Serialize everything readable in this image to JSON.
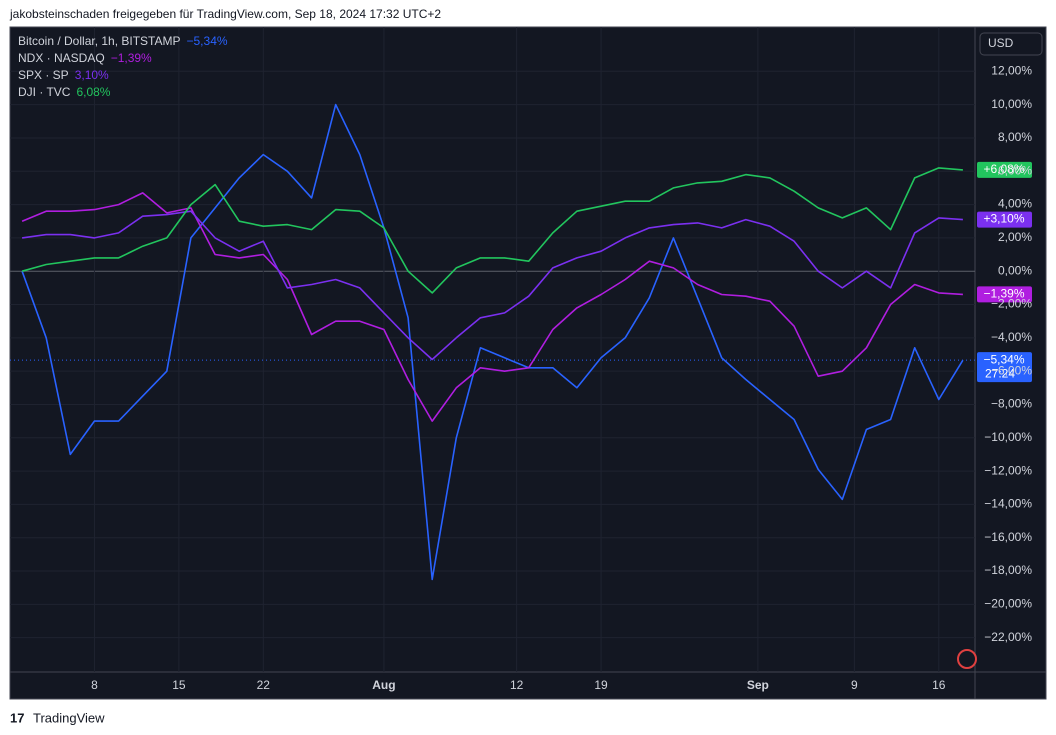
{
  "header": "jakobsteinschaden freigegeben für TradingView.com, Sep 18, 2024 17:32 UTC+2",
  "footer": "TradingView",
  "chart_data": {
    "type": "line",
    "currency": "USD",
    "countdown": "27:24",
    "x": [
      "2024-07-02",
      "2024-07-04",
      "2024-07-06",
      "2024-07-08",
      "2024-07-10",
      "2024-07-12",
      "2024-07-14",
      "2024-07-16",
      "2024-07-18",
      "2024-07-20",
      "2024-07-22",
      "2024-07-24",
      "2024-07-26",
      "2024-07-28",
      "2024-07-30",
      "2024-08-01",
      "2024-08-03",
      "2024-08-05",
      "2024-08-07",
      "2024-08-09",
      "2024-08-11",
      "2024-08-13",
      "2024-08-15",
      "2024-08-17",
      "2024-08-19",
      "2024-08-21",
      "2024-08-23",
      "2024-08-25",
      "2024-08-27",
      "2024-08-29",
      "2024-08-31",
      "2024-09-02",
      "2024-09-04",
      "2024-09-06",
      "2024-09-08",
      "2024-09-10",
      "2024-09-12",
      "2024-09-14",
      "2024-09-16",
      "2024-09-18"
    ],
    "xlim": [
      "2024-07-01",
      "2024-09-19"
    ],
    "xticks": [
      {
        "value": "2024-07-08",
        "label": "8"
      },
      {
        "value": "2024-07-15",
        "label": "15"
      },
      {
        "value": "2024-07-22",
        "label": "22"
      },
      {
        "value": "2024-08-01",
        "label": "Aug"
      },
      {
        "value": "2024-08-12",
        "label": "12"
      },
      {
        "value": "2024-08-19",
        "label": "19"
      },
      {
        "value": "2024-09-01",
        "label": "Sep"
      },
      {
        "value": "2024-09-09",
        "label": "9"
      },
      {
        "value": "2024-09-16",
        "label": "16"
      }
    ],
    "ylim": [
      -24.06,
      14.66
    ],
    "yticks": [
      {
        "value": 12,
        "label": "12,00%"
      },
      {
        "value": 10,
        "label": "10,00%"
      },
      {
        "value": 8,
        "label": "8,00%"
      },
      {
        "value": 6,
        "label": "6,00%"
      },
      {
        "value": 4,
        "label": "4,00%"
      },
      {
        "value": 2,
        "label": "2,00%"
      },
      {
        "value": 0,
        "label": "0,00%"
      },
      {
        "value": -2,
        "label": "−2,00%"
      },
      {
        "value": -4,
        "label": "−4,00%"
      },
      {
        "value": -6,
        "label": "−6,00%"
      },
      {
        "value": -8,
        "label": "−8,00%"
      },
      {
        "value": -10,
        "label": "−10,00%"
      },
      {
        "value": -12,
        "label": "−12,00%"
      },
      {
        "value": -14,
        "label": "−14,00%"
      },
      {
        "value": -16,
        "label": "−16,00%"
      },
      {
        "value": -18,
        "label": "−18,00%"
      },
      {
        "value": -20,
        "label": "−20,00%"
      },
      {
        "value": -22,
        "label": "−22,00%"
      }
    ],
    "grid": true,
    "series": [
      {
        "name": "Bitcoin / Dollar, 1h, BITSTAMP",
        "color": "#2962ff",
        "legend_value": "−5,34%",
        "last_label": "−5,34%",
        "values": [
          0,
          -4,
          -11,
          -9,
          -9,
          -7.5,
          -6,
          2,
          3.8,
          5.6,
          7,
          6,
          4.4,
          10,
          7,
          2.6,
          -2.8,
          -18.5,
          -10,
          -4.6,
          -5.2,
          -5.8,
          -5.8,
          -7,
          -5.2,
          -4,
          -1.6,
          2,
          -1.6,
          -5.2,
          -6.5,
          -7.7,
          -8.9,
          -11.9,
          -13.7,
          -9.5,
          -8.9,
          -4.6,
          -7.7,
          -5.34
        ]
      },
      {
        "name": "NDX · NASDAQ",
        "color": "#b01ee0",
        "legend_value": "−1,39%",
        "last_label": "−1,39%",
        "values": [
          3,
          3.6,
          3.6,
          3.7,
          4,
          4.7,
          3.5,
          3.8,
          1,
          0.8,
          1,
          -0.5,
          -3.8,
          -3,
          -3,
          -3.5,
          -6.5,
          -9,
          -7,
          -5.8,
          -6,
          -5.8,
          -3.5,
          -2.2,
          -1.4,
          -0.5,
          0.6,
          0.2,
          -0.8,
          -1.4,
          -1.5,
          -1.8,
          -3.3,
          -6.3,
          -6,
          -4.6,
          -2,
          -0.8,
          -1.3,
          -1.39
        ]
      },
      {
        "name": "SPX · SP",
        "color": "#7b30f0",
        "legend_value": "3,10%",
        "last_label": "+3,10%",
        "values": [
          2,
          2.2,
          2.2,
          2,
          2.3,
          3.3,
          3.4,
          3.6,
          2,
          1.2,
          1.8,
          -1,
          -0.8,
          -0.5,
          -1,
          -2.5,
          -4,
          -5.3,
          -4,
          -2.8,
          -2.5,
          -1.5,
          0.2,
          0.8,
          1.2,
          2,
          2.6,
          2.8,
          2.9,
          2.6,
          3.1,
          2.7,
          1.8,
          0,
          -1,
          0,
          -1,
          2.3,
          3.2,
          3.1
        ]
      },
      {
        "name": "DJI · TVC",
        "color": "#22c55e",
        "legend_value": "6,08%",
        "last_label": "+6,08%",
        "values": [
          0,
          0.4,
          0.6,
          0.8,
          0.8,
          1.5,
          2,
          4,
          5.2,
          3,
          2.7,
          2.8,
          2.5,
          3.7,
          3.6,
          2.6,
          0,
          -1.3,
          0.2,
          0.8,
          0.8,
          0.6,
          2.3,
          3.6,
          3.9,
          4.2,
          4.2,
          5,
          5.3,
          5.4,
          5.8,
          5.6,
          4.8,
          3.8,
          3.2,
          3.8,
          2.5,
          5.6,
          6.2,
          6.08
        ]
      }
    ]
  }
}
